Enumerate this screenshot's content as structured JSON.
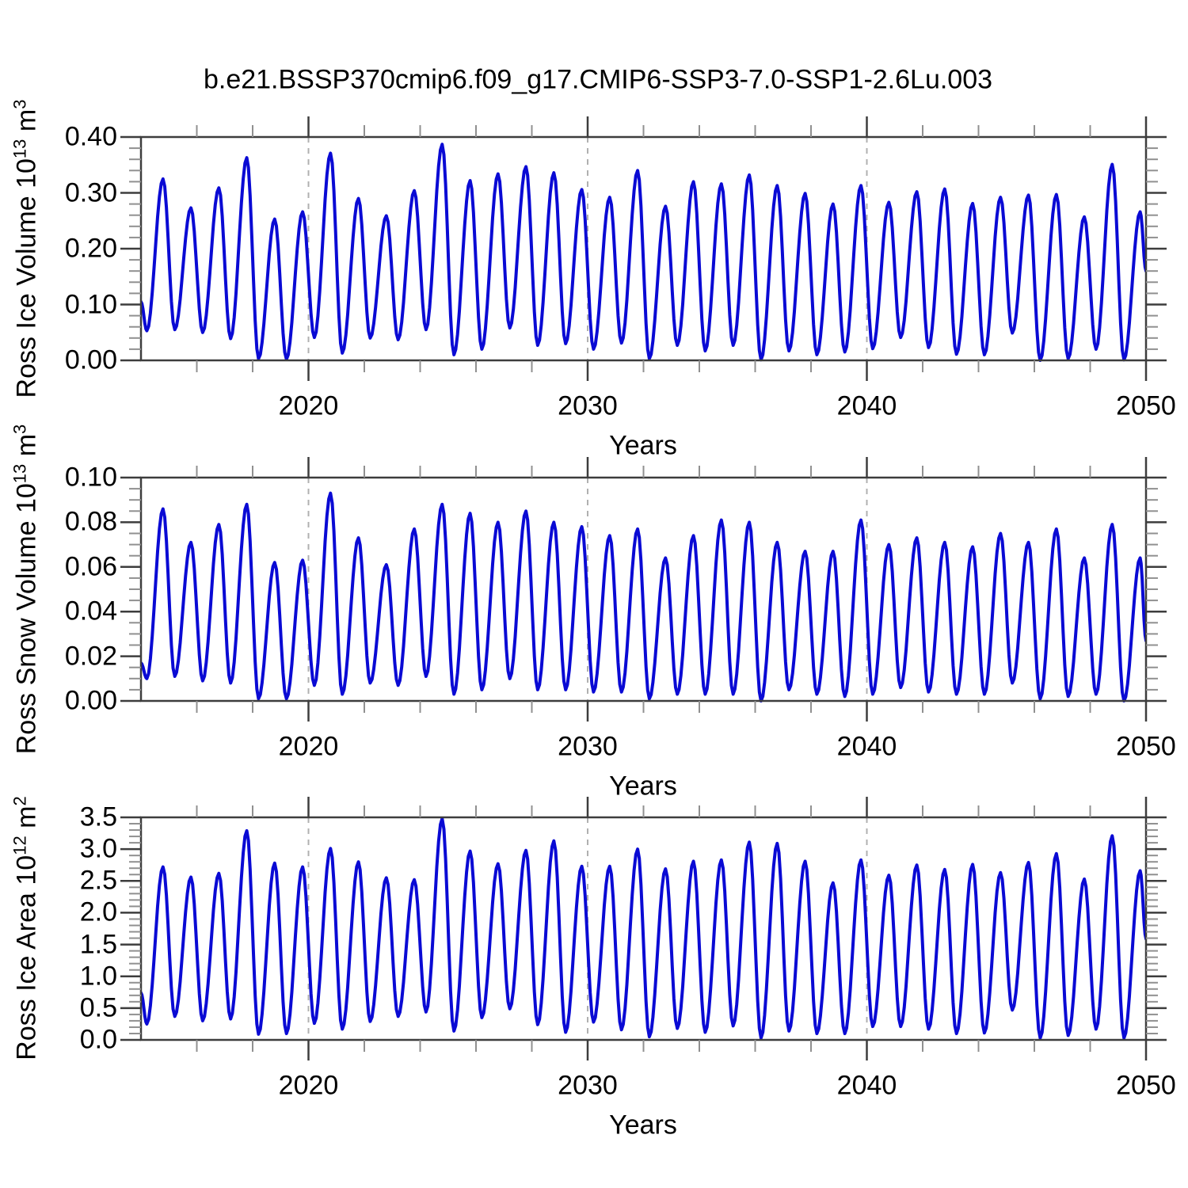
{
  "title": "b.e21.BSSP370cmip6.f09_g17.CMIP6-SSP3-7.0-SSP1-2.6Lu.003",
  "line_color": "#0A0AD4",
  "grid_color": "#b0b0b0",
  "frame_color": "#3d3d3d",
  "minor_tick_color": "#909090",
  "panels": [
    {
      "y_title": {
        "text": "Ross Ice Volume 10",
        "exp": "13",
        "unit": " m",
        "unit_exp": "3"
      },
      "x_label": "Years",
      "y_tick_labels": [
        "0.00",
        "0.10",
        "0.20",
        "0.30",
        "0.40"
      ],
      "x_tick_labels": [
        "2020",
        "2030",
        "2040",
        "2050"
      ]
    },
    {
      "y_title": {
        "text": "Ross Snow Volume 10",
        "exp": "13",
        "unit": " m",
        "unit_exp": "3"
      },
      "x_label": "Years",
      "y_tick_labels": [
        "0.00",
        "0.02",
        "0.04",
        "0.06",
        "0.08",
        "0.10"
      ],
      "x_tick_labels": [
        "2020",
        "2030",
        "2040",
        "2050"
      ]
    },
    {
      "y_title": {
        "text": "Ross Ice Area 10",
        "exp": "12",
        "unit": " m",
        "unit_exp": "2"
      },
      "x_label": "Years",
      "y_tick_labels": [
        "0.0",
        "0.5",
        "1.0",
        "1.5",
        "2.0",
        "2.5",
        "3.0",
        "3.5"
      ],
      "x_tick_labels": [
        "2020",
        "2030",
        "2040",
        "2050"
      ]
    }
  ],
  "chart_data": [
    {
      "type": "line",
      "series_name": "Ross Ice Volume",
      "ylabel": "Ross Ice Volume 10^13 m^3",
      "xlabel": "Years",
      "x_range": [
        2014,
        2050
      ],
      "ylim": [
        0.0,
        0.4
      ],
      "y_major_step": 0.1,
      "y_minor_step": 0.02,
      "x_major_ticks": [
        2020,
        2030,
        2040,
        2050
      ],
      "x_minor_step": 2,
      "grid_x": [
        2020,
        2030,
        2040
      ],
      "grid": "vertical-dashed-only",
      "legend": "none",
      "seasonal": {
        "trough_phase": 0.21,
        "peak_phase": 0.79
      },
      "years": [
        2014,
        2015,
        2016,
        2017,
        2018,
        2019,
        2020,
        2021,
        2022,
        2023,
        2024,
        2025,
        2026,
        2027,
        2028,
        2029,
        2030,
        2031,
        2032,
        2033,
        2034,
        2035,
        2036,
        2037,
        2038,
        2039,
        2040,
        2041,
        2042,
        2043,
        2044,
        2045,
        2046,
        2047,
        2048,
        2049
      ],
      "annual_min": [
        0.053,
        0.055,
        0.05,
        0.039,
        0.003,
        0.002,
        0.041,
        0.013,
        0.04,
        0.037,
        0.055,
        0.01,
        0.02,
        0.058,
        0.027,
        0.03,
        0.02,
        0.031,
        0.003,
        0.027,
        0.017,
        0.027,
        0.001,
        0.017,
        0.01,
        0.015,
        0.021,
        0.041,
        0.023,
        0.011,
        0.01,
        0.049,
        0.0,
        0.003,
        0.02,
        0.001
      ],
      "annual_max": [
        0.325,
        0.273,
        0.309,
        0.363,
        0.253,
        0.266,
        0.371,
        0.29,
        0.259,
        0.304,
        0.387,
        0.322,
        0.334,
        0.347,
        0.336,
        0.306,
        0.292,
        0.34,
        0.276,
        0.32,
        0.316,
        0.332,
        0.313,
        0.299,
        0.28,
        0.313,
        0.283,
        0.302,
        0.307,
        0.281,
        0.292,
        0.296,
        0.297,
        0.257,
        0.351,
        0.266
      ],
      "start_value": 0.105,
      "end_value": 0.16
    },
    {
      "type": "line",
      "series_name": "Ross Snow Volume",
      "ylabel": "Ross Snow Volume 10^13 m^3",
      "xlabel": "Years",
      "x_range": [
        2014,
        2050
      ],
      "ylim": [
        0.0,
        0.1
      ],
      "y_major_step": 0.02,
      "y_minor_step": 0.005,
      "x_major_ticks": [
        2020,
        2030,
        2040,
        2050
      ],
      "x_minor_step": 2,
      "grid_x": [
        2020,
        2030,
        2040
      ],
      "grid": "vertical-dashed-only",
      "legend": "none",
      "seasonal": {
        "trough_phase": 0.21,
        "peak_phase": 0.79
      },
      "years": [
        2014,
        2015,
        2016,
        2017,
        2018,
        2019,
        2020,
        2021,
        2022,
        2023,
        2024,
        2025,
        2026,
        2027,
        2028,
        2029,
        2030,
        2031,
        2032,
        2033,
        2034,
        2035,
        2036,
        2037,
        2038,
        2039,
        2040,
        2041,
        2042,
        2043,
        2044,
        2045,
        2046,
        2047,
        2048,
        2049
      ],
      "annual_min": [
        0.01,
        0.011,
        0.009,
        0.008,
        0.001,
        0.001,
        0.007,
        0.003,
        0.008,
        0.007,
        0.011,
        0.003,
        0.005,
        0.01,
        0.005,
        0.005,
        0.004,
        0.004,
        0.001,
        0.003,
        0.003,
        0.003,
        0.0,
        0.005,
        0.003,
        0.002,
        0.003,
        0.006,
        0.004,
        0.003,
        0.003,
        0.008,
        0.001,
        0.002,
        0.003,
        0.0
      ],
      "annual_max": [
        0.086,
        0.071,
        0.079,
        0.088,
        0.062,
        0.063,
        0.093,
        0.073,
        0.061,
        0.077,
        0.088,
        0.084,
        0.08,
        0.085,
        0.08,
        0.078,
        0.074,
        0.077,
        0.064,
        0.074,
        0.081,
        0.08,
        0.071,
        0.067,
        0.067,
        0.081,
        0.07,
        0.073,
        0.071,
        0.069,
        0.075,
        0.071,
        0.077,
        0.064,
        0.079,
        0.064
      ],
      "start_value": 0.017,
      "end_value": 0.027
    },
    {
      "type": "line",
      "series_name": "Ross Ice Area",
      "ylabel": "Ross Ice Area 10^12 m^2",
      "xlabel": "Years",
      "x_range": [
        2014,
        2050
      ],
      "ylim": [
        0.0,
        3.5
      ],
      "y_major_step": 0.5,
      "y_minor_step": 0.1,
      "x_major_ticks": [
        2020,
        2030,
        2040,
        2050
      ],
      "x_minor_step": 2,
      "grid_x": [
        2020,
        2030,
        2040
      ],
      "grid": "vertical-dashed-only",
      "legend": "none",
      "seasonal": {
        "trough_phase": 0.21,
        "peak_phase": 0.79
      },
      "years": [
        2014,
        2015,
        2016,
        2017,
        2018,
        2019,
        2020,
        2021,
        2022,
        2023,
        2024,
        2025,
        2026,
        2027,
        2028,
        2029,
        2030,
        2031,
        2032,
        2033,
        2034,
        2035,
        2036,
        2037,
        2038,
        2039,
        2040,
        2041,
        2042,
        2043,
        2044,
        2045,
        2046,
        2047,
        2048,
        2049
      ],
      "annual_min": [
        0.25,
        0.37,
        0.3,
        0.33,
        0.09,
        0.1,
        0.26,
        0.17,
        0.29,
        0.37,
        0.44,
        0.14,
        0.35,
        0.49,
        0.24,
        0.12,
        0.28,
        0.16,
        0.05,
        0.18,
        0.12,
        0.22,
        0.03,
        0.14,
        0.1,
        0.1,
        0.21,
        0.21,
        0.17,
        0.1,
        0.11,
        0.47,
        0.03,
        0.07,
        0.17,
        0.03
      ],
      "annual_max": [
        2.72,
        2.56,
        2.62,
        3.29,
        2.78,
        2.72,
        3.01,
        2.8,
        2.55,
        2.52,
        3.48,
        2.97,
        2.77,
        2.98,
        3.13,
        2.73,
        2.73,
        3.0,
        2.69,
        2.81,
        2.83,
        3.11,
        3.09,
        2.81,
        2.47,
        2.83,
        2.59,
        2.75,
        2.68,
        2.76,
        2.63,
        2.79,
        2.93,
        2.53,
        3.21,
        2.66
      ],
      "start_value": 0.74,
      "end_value": 1.59
    }
  ]
}
